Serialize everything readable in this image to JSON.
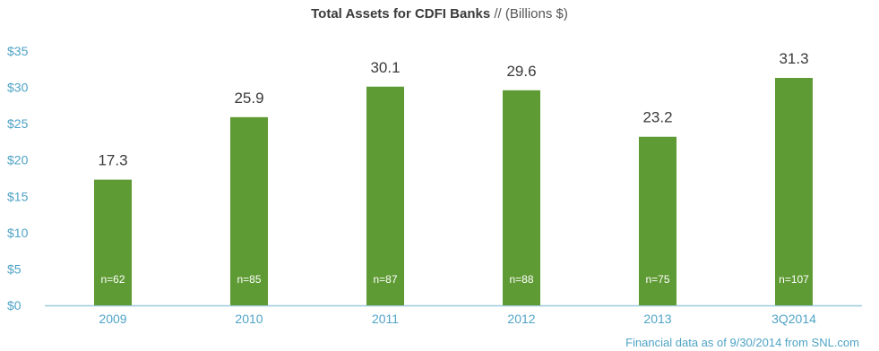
{
  "title_bold": "Total Assets for CDFI Banks",
  "title_rest": " // (Billions $)",
  "footnote": "Financial data as of 9/30/2014 from SNL.com",
  "colors": {
    "bar": "#5f9b34",
    "axis_text": "#4fa3c6",
    "value_label": "#3a3a3a",
    "inner_label": "#ffffff",
    "axis_line": "#9ec9dc"
  },
  "chart_data": {
    "type": "bar",
    "title": "Total Assets for CDFI Banks // (Billions $)",
    "categories": [
      "2009",
      "2010",
      "2011",
      "2012",
      "2013",
      "3Q2014"
    ],
    "values": [
      17.3,
      25.9,
      30.1,
      29.6,
      23.2,
      31.3
    ],
    "value_labels": [
      "17.3",
      "25.9",
      "30.1",
      "29.6",
      "23.2",
      "31.3"
    ],
    "bar_inner_labels": [
      "n=62",
      "n=85",
      "n=87",
      "n=88",
      "n=75",
      "n=107"
    ],
    "y_ticks": [
      0,
      5,
      10,
      15,
      20,
      25,
      30,
      35
    ],
    "y_tick_labels": [
      "$0",
      "$5",
      "$10",
      "$15",
      "$20",
      "$25",
      "$30",
      "$35"
    ],
    "ylim": [
      0,
      35
    ],
    "xlabel": "",
    "ylabel": "",
    "grid": false,
    "legend": "none"
  }
}
